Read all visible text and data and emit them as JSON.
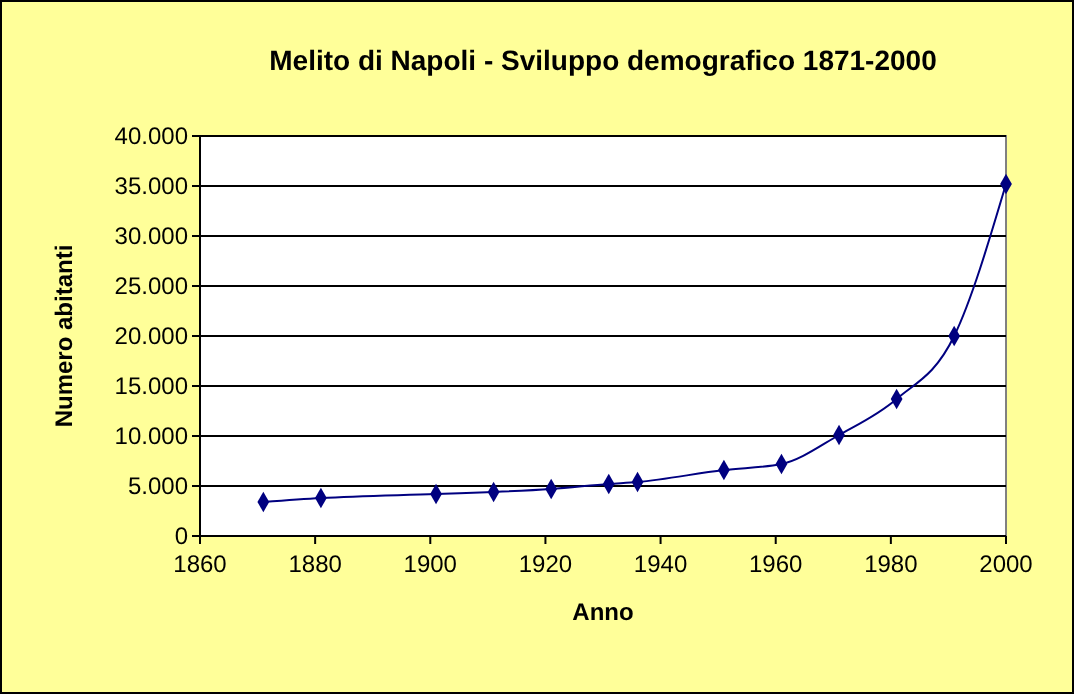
{
  "chart_data": {
    "type": "line",
    "title": "Melito di Napoli - Sviluppo demografico 1871-2000",
    "xlabel": "Anno",
    "ylabel": "Numero abitanti",
    "x": [
      1871,
      1881,
      1901,
      1911,
      1921,
      1931,
      1936,
      1951,
      1961,
      1971,
      1981,
      1991,
      2000
    ],
    "series": [
      {
        "color": "#000080",
        "values": [
          3400,
          3800,
          4200,
          4400,
          4700,
          5200,
          5400,
          6600,
          7200,
          10100,
          13700,
          20000,
          35200
        ]
      }
    ],
    "xlim": [
      1860,
      2000
    ],
    "xticks": [
      1860,
      1880,
      1900,
      1920,
      1940,
      1960,
      1980,
      2000
    ],
    "ylim": [
      0,
      40000
    ],
    "yticks": [
      {
        "value": 0,
        "label": "0"
      },
      {
        "value": 5000,
        "label": "5.000"
      },
      {
        "value": 10000,
        "label": "10.000"
      },
      {
        "value": 15000,
        "label": "15.000"
      },
      {
        "value": 20000,
        "label": "20.000"
      },
      {
        "value": 25000,
        "label": "25.000"
      },
      {
        "value": 30000,
        "label": "30.000"
      },
      {
        "value": 35000,
        "label": "35.000"
      },
      {
        "value": 40000,
        "label": "40.000"
      }
    ],
    "grid": "y",
    "marker": "diamond",
    "line_style": "solid"
  }
}
